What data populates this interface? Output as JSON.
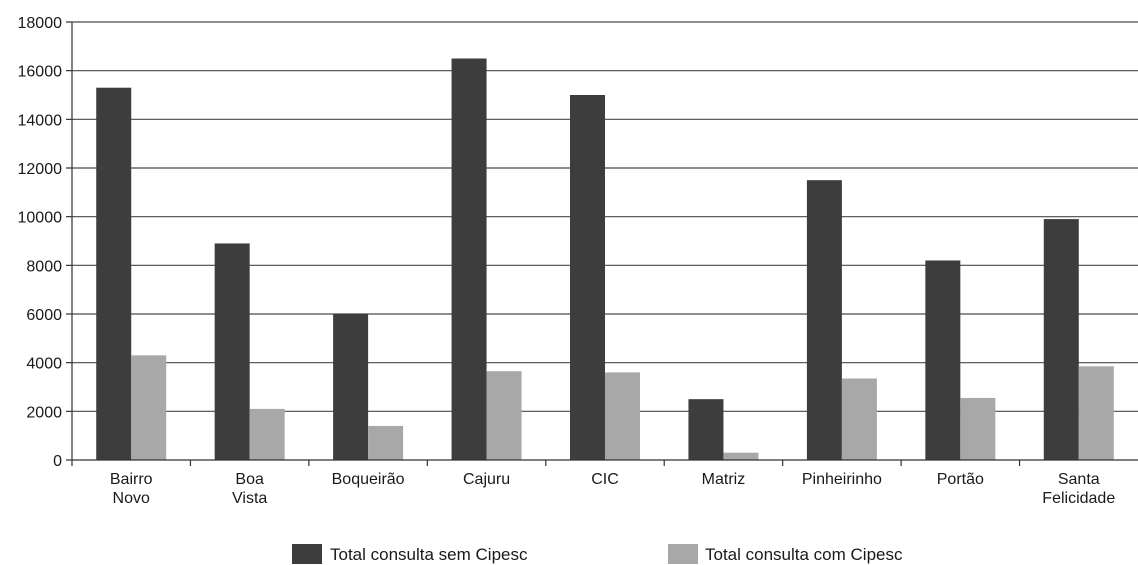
{
  "chart_data": {
    "type": "bar",
    "title": "",
    "xlabel": "",
    "ylabel": "",
    "ylim": [
      0,
      18000
    ],
    "yticks": [
      0,
      2000,
      4000,
      6000,
      8000,
      10000,
      12000,
      14000,
      16000,
      18000
    ],
    "grid": true,
    "legend_position": "bottom",
    "categories": [
      [
        "Bairro",
        "Novo"
      ],
      [
        "Boa",
        "Vista"
      ],
      [
        "Boqueirão"
      ],
      [
        "Cajuru"
      ],
      [
        "CIC"
      ],
      [
        "Matriz"
      ],
      [
        "Pinheirinho"
      ],
      [
        "Portão"
      ],
      [
        "Santa",
        "Felicidade"
      ]
    ],
    "series": [
      {
        "name": "Total consulta sem Cipesc",
        "color": "#3d3d3d",
        "values": [
          15300,
          8900,
          6000,
          16500,
          15000,
          2500,
          11500,
          8200,
          9900
        ]
      },
      {
        "name": "Total consulta com Cipesc",
        "color": "#a8a8a8",
        "values": [
          4300,
          2100,
          1400,
          3650,
          3600,
          300,
          3350,
          2550,
          3850
        ]
      }
    ]
  }
}
